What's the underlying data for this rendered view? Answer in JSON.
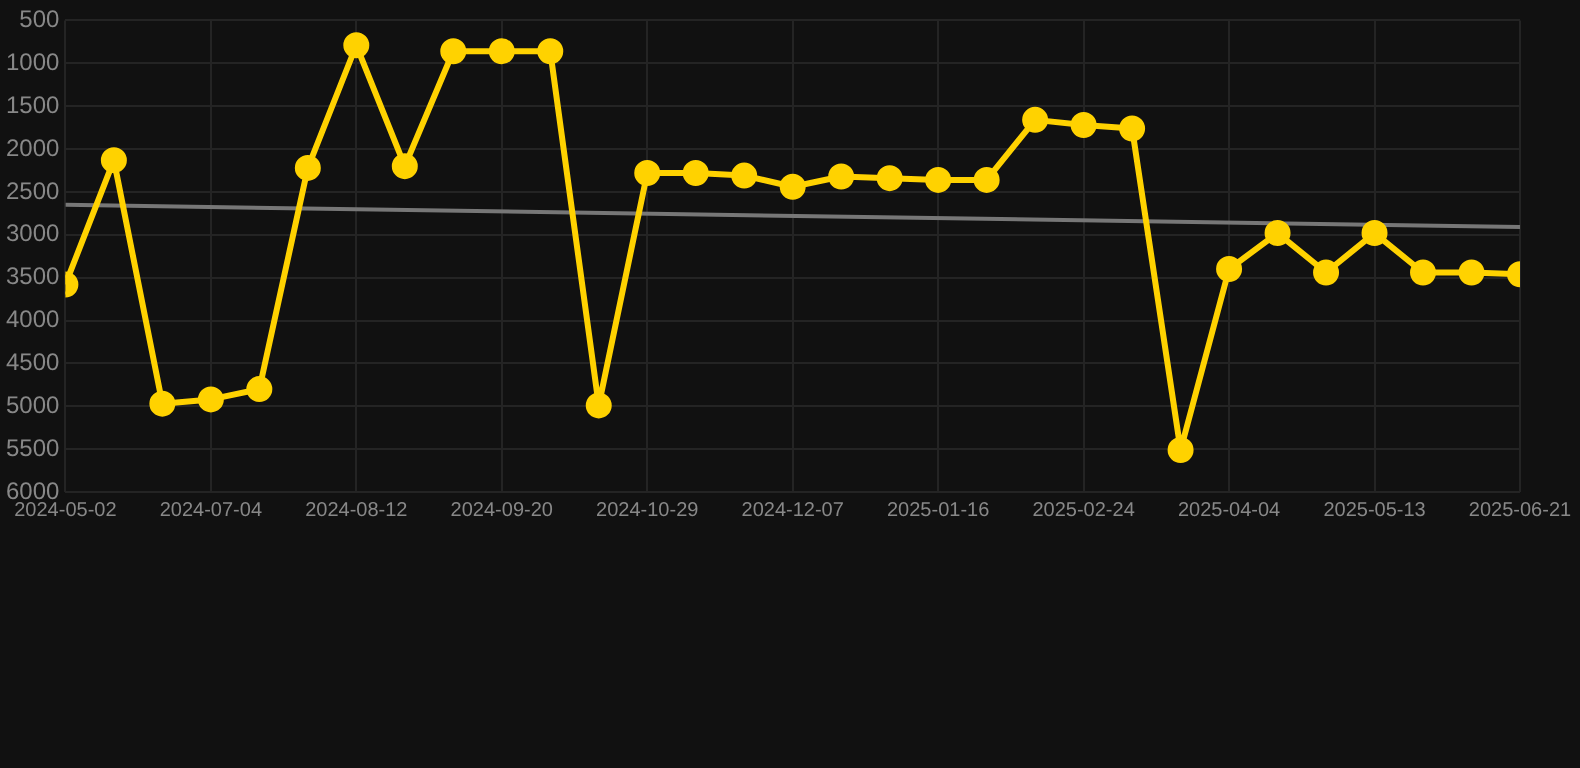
{
  "chart_data": {
    "type": "line",
    "categories": [
      "2024-05-02",
      null,
      null,
      "2024-07-04",
      null,
      null,
      "2024-08-12",
      null,
      null,
      "2024-09-20",
      null,
      null,
      "2024-10-29",
      null,
      null,
      "2024-12-07",
      null,
      null,
      "2025-01-16",
      null,
      null,
      "2025-02-24",
      null,
      null,
      "2025-04-04",
      null,
      null,
      "2025-05-13",
      null,
      null,
      "2025-06-21"
    ],
    "series": [
      {
        "color": "#ffd200",
        "values": [
          3580,
          2130,
          4970,
          4920,
          4800,
          2220,
          790,
          2200,
          860,
          860,
          860,
          4990,
          2280,
          2280,
          2310,
          2440,
          2320,
          2340,
          2360,
          2360,
          1660,
          1720,
          1760,
          5510,
          3400,
          2980,
          3440,
          2980,
          3440,
          3440,
          3460
        ]
      },
      {
        "type": "line",
        "color": "#777777",
        "values": [
          2650,
          null,
          null,
          null,
          null,
          null,
          null,
          null,
          null,
          null,
          null,
          null,
          null,
          null,
          null,
          null,
          null,
          null,
          null,
          null,
          null,
          null,
          null,
          null,
          null,
          null,
          null,
          null,
          null,
          null,
          2910
        ],
        "marker": "none"
      }
    ],
    "ylim": [
      6000,
      500
    ],
    "yticks": [
      500,
      1000,
      1500,
      2000,
      2500,
      3000,
      3500,
      4000,
      4500,
      5000,
      5500,
      6000
    ],
    "grid": true,
    "marker": "circle",
    "line_style": "solid"
  }
}
